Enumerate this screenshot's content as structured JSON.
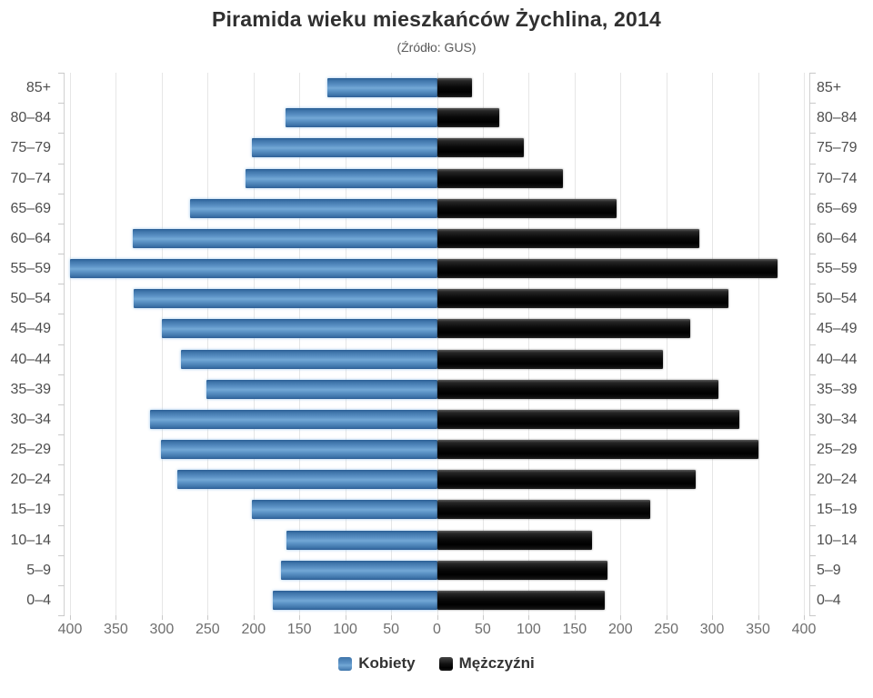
{
  "header": {
    "title": "Piramida wieku mieszkańców Żychlina, 2014",
    "subtitle": "(Źródło: GUS)"
  },
  "colors": {
    "kobiety": "#4d84ba",
    "mezczyzni": "#0d0d0d",
    "gridline": "#e6e6e6",
    "axis": "#c9c9c9",
    "title_text": "#303030",
    "tick_text": "#6e6e6e",
    "category_text": "#4e4e4e"
  },
  "chart_data": {
    "type": "bar",
    "variant": "population-pyramid",
    "title": "Piramida wieku mieszkańców Żychlina, 2014",
    "subtitle": "(Źródło: GUS)",
    "categories": [
      "85+",
      "80–84",
      "75–79",
      "70–74",
      "65–69",
      "60–64",
      "55–59",
      "50–54",
      "45–49",
      "40–44",
      "35–39",
      "30–34",
      "25–29",
      "20–24",
      "15–19",
      "10–14",
      "5–9",
      "0–4"
    ],
    "series": [
      {
        "name": "Kobiety",
        "side": "left",
        "color": "#4d84ba",
        "values": [
          119,
          165,
          202,
          209,
          269,
          332,
          400,
          331,
          300,
          279,
          251,
          313,
          301,
          283,
          202,
          164,
          170,
          179
        ]
      },
      {
        "name": "Mężczyźni",
        "side": "right",
        "color": "#0d0d0d",
        "values": [
          38,
          68,
          95,
          137,
          196,
          286,
          371,
          318,
          276,
          246,
          307,
          330,
          350,
          282,
          232,
          169,
          186,
          183
        ]
      }
    ],
    "xlim": [
      0,
      400
    ],
    "x_tick_step": 50,
    "x_ticks": [
      400,
      350,
      300,
      250,
      200,
      150,
      100,
      50,
      0,
      50,
      100,
      150,
      200,
      250,
      300,
      350,
      400
    ],
    "grid": true,
    "legend_position": "bottom"
  }
}
